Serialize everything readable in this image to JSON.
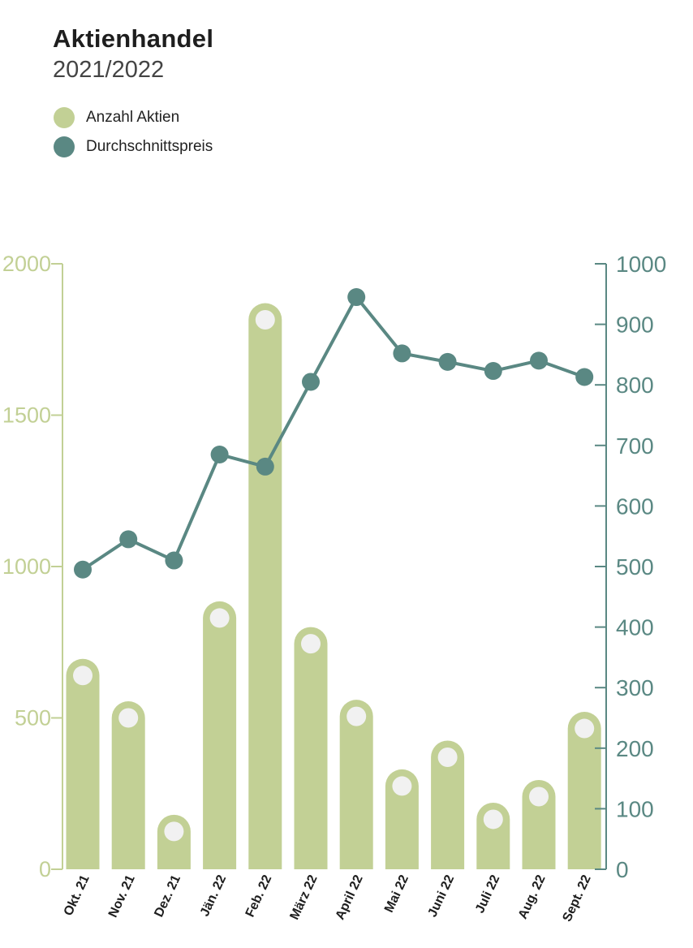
{
  "header": {
    "title": "Aktienhandel",
    "subtitle": "2021/2022"
  },
  "colors": {
    "bars": "#c2d095",
    "bar_dot": "#f1f1f1",
    "line": "#5a8883",
    "left_axis": "#c2d095",
    "right_axis": "#5a8883"
  },
  "chart_data": {
    "type": "bar+line",
    "categories": [
      "Okt. 21",
      "Nov. 21",
      "Dez. 21",
      "Jän. 22",
      "Feb. 22",
      "März 22",
      "April 22",
      "Mai 22",
      "Juni 22",
      "Juli 22",
      "Aug. 22",
      "Sept. 22"
    ],
    "series": [
      {
        "name": "Anzahl Aktien",
        "type": "bar",
        "axis": "left",
        "values": [
          640,
          500,
          125,
          830,
          1815,
          745,
          505,
          275,
          370,
          165,
          240,
          465
        ]
      },
      {
        "name": "Durchschnittspreis",
        "type": "line",
        "axis": "right",
        "values": [
          495,
          545,
          510,
          685,
          665,
          805,
          945,
          852,
          838,
          823,
          840,
          813
        ]
      }
    ],
    "left_axis": {
      "ylim": [
        0,
        2000
      ],
      "ticks": [
        "0",
        "500",
        "1000",
        "1500",
        "2000"
      ]
    },
    "right_axis": {
      "ylim": [
        0,
        1000
      ],
      "ticks": [
        "0",
        "100",
        "200",
        "300",
        "400",
        "500",
        "600",
        "700",
        "800",
        "900",
        "1000"
      ]
    },
    "legend": "top-left",
    "grid": false
  }
}
